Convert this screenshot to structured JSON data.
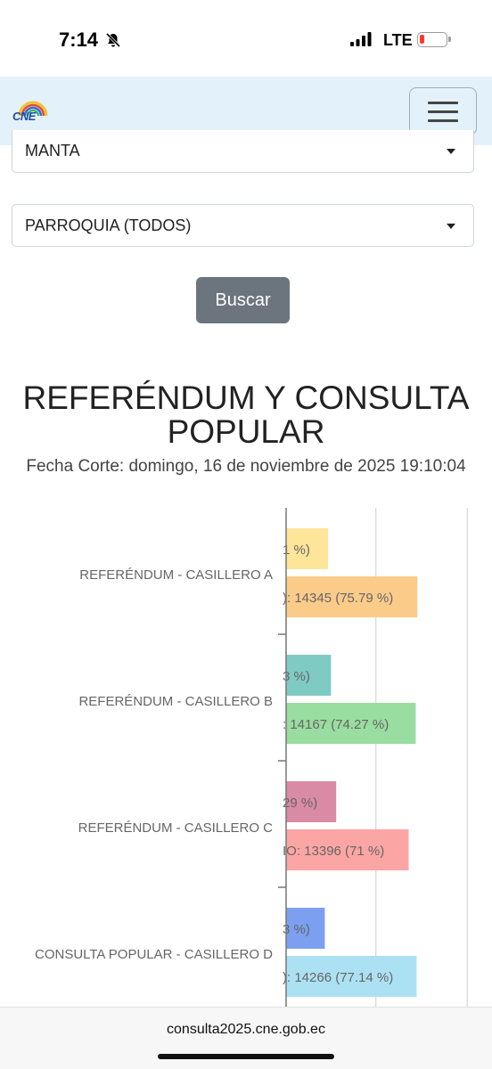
{
  "status_bar": {
    "time": "7:14",
    "network": "LTE"
  },
  "navbar": {
    "logo_text": "CNE"
  },
  "filters": {
    "canton": "MANTA",
    "parroquia": "PARROQUIA (TODOS)",
    "search_label": "Buscar"
  },
  "report": {
    "title": "REFERÉNDUM Y CONSULTA POPULAR",
    "cutoff": "Fecha Corte: domingo, 16 de noviembre de 2025 19:10:04"
  },
  "chart_data": {
    "type": "bar",
    "orientation": "horizontal",
    "categories": [
      "REFERÉNDUM - CASILLERO A",
      "REFERÉNDUM - CASILLERO B",
      "REFERÉNDUM - CASILLERO C",
      "CONSULTA POPULAR - CASILLERO D"
    ],
    "series": [
      {
        "values": [
          4583,
          4909,
          5472,
          4228
        ],
        "labels": [
          "1 %)",
          "3 %)",
          "29 %)",
          "3 %)"
        ],
        "colors": [
          "#fde59a",
          "#7fcbc4",
          "#d98ba6",
          "#7c9ff0"
        ]
      },
      {
        "values": [
          14345,
          14167,
          13396,
          14266
        ],
        "labels": [
          "): 14345 (75.79 %)",
          ": 14167 (74.27 %)",
          "IO: 13396 (71 %)",
          "): 14266 (77.14 %)"
        ],
        "colors": [
          "#fbcb8a",
          "#99dda0",
          "#fca5a5",
          "#ace1f4"
        ]
      }
    ],
    "visible_window": [
      -1000,
      22500
    ],
    "grid": true
  },
  "footer": {
    "url": "consulta2025.cne.gob.ec"
  }
}
